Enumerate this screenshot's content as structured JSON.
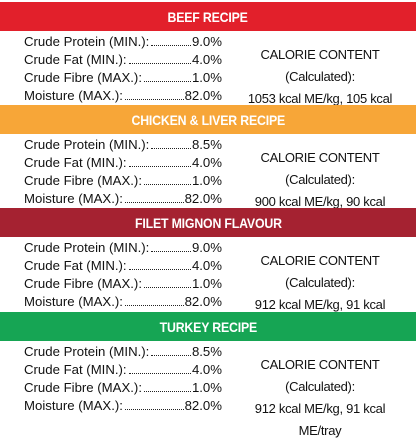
{
  "colors": {
    "beef": "#e2202b",
    "chicken": "#f7a638",
    "filet": "#a52231",
    "turkey": "#16a554"
  },
  "recipes": [
    {
      "title": "BEEF RECIPE",
      "rows": [
        {
          "label": "Crude Protein (MIN.):",
          "value": "9.0%"
        },
        {
          "label": "Crude Fat (MIN.):",
          "value": "4.0%"
        },
        {
          "label": "Crude Fibre (MAX.):",
          "value": "1.0%"
        },
        {
          "label": "Moisture (MAX.):",
          "value": "82.0%"
        }
      ],
      "calorie_heading": "CALORIE CONTENT (Calculated):",
      "calorie_value": "1053 kcal ME/kg, 105 kcal ME/tray"
    },
    {
      "title": "CHICKEN & LIVER RECIPE",
      "rows": [
        {
          "label": "Crude Protein (MIN.):",
          "value": "8.5%"
        },
        {
          "label": "Crude Fat (MIN.):",
          "value": "4.0%"
        },
        {
          "label": "Crude Fibre (MAX.):",
          "value": "1.0%"
        },
        {
          "label": "Moisture (MAX.):",
          "value": "82.0%"
        }
      ],
      "calorie_heading": "CALORIE CONTENT (Calculated):",
      "calorie_value": "900 kcal ME/kg, 90 kcal ME/tray"
    },
    {
      "title": "FILET MIGNON FLAVOUR",
      "rows": [
        {
          "label": "Crude Protein (MIN.):",
          "value": "9.0%"
        },
        {
          "label": "Crude Fat (MIN.):",
          "value": "4.0%"
        },
        {
          "label": "Crude Fibre (MAX.):",
          "value": "1.0%"
        },
        {
          "label": "Moisture (MAX.):",
          "value": "82.0%"
        }
      ],
      "calorie_heading": "CALORIE CONTENT (Calculated):",
      "calorie_value": "912 kcal ME/kg, 91 kcal ME/Tray"
    },
    {
      "title": "TURKEY RECIPE",
      "rows": [
        {
          "label": "Crude Protein (MIN.):",
          "value": "8.5%"
        },
        {
          "label": "Crude Fat (MIN.):",
          "value": "4.0%"
        },
        {
          "label": "Crude Fibre (MAX.):",
          "value": "1.0%"
        },
        {
          "label": "Moisture (MAX.):",
          "value": "82.0%"
        }
      ],
      "calorie_heading": "CALORIE CONTENT (Calculated):",
      "calorie_value": "912 kcal ME/kg, 91 kcal ME/tray"
    }
  ]
}
